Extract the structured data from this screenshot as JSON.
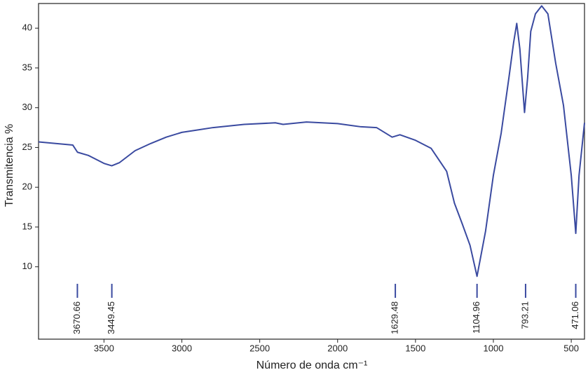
{
  "chart_data": {
    "type": "line",
    "xlabel": "Número de onda cm⁻¹",
    "ylabel": "Transmitencia %",
    "x": [
      3920,
      3700,
      3670,
      3600,
      3500,
      3450,
      3400,
      3300,
      3200,
      3100,
      3000,
      2900,
      2800,
      2600,
      2400,
      2350,
      2200,
      2000,
      1850,
      1750,
      1650,
      1600,
      1500,
      1400,
      1300,
      1250,
      1200,
      1150,
      1105,
      1050,
      1000,
      950,
      900,
      870,
      850,
      830,
      800,
      780,
      760,
      730,
      690,
      650,
      600,
      550,
      500,
      471,
      450,
      415
    ],
    "series": [
      {
        "color": "#3a4aa0",
        "values": [
          25.7,
          25.3,
          24.4,
          24.0,
          23.0,
          22.7,
          23.1,
          24.6,
          25.5,
          26.3,
          26.9,
          27.2,
          27.5,
          27.9,
          28.1,
          27.9,
          28.2,
          28.0,
          27.6,
          27.5,
          26.3,
          26.6,
          25.9,
          24.9,
          22.0,
          18.0,
          15.4,
          12.7,
          8.8,
          14.5,
          21.5,
          26.8,
          33.8,
          38.2,
          40.6,
          37.4,
          29.4,
          33.8,
          39.6,
          41.8,
          42.8,
          41.8,
          35.6,
          30.3,
          21.5,
          14.2,
          21.5,
          28.1
        ]
      }
    ],
    "peaks": [
      3670.66,
      3449.45,
      1629.48,
      1104.96,
      793.21,
      471.06
    ],
    "xlim": [
      3920,
      415
    ],
    "ylim": [
      0.9,
      43.1
    ],
    "xticks": [
      3500,
      3000,
      2500,
      2000,
      1500,
      1000,
      500
    ],
    "yticks": [
      10,
      15,
      20,
      25,
      30,
      35,
      40
    ]
  }
}
